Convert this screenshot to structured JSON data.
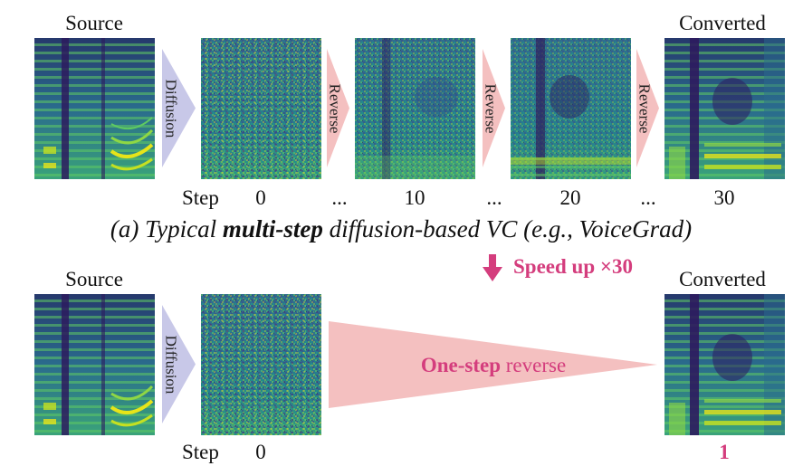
{
  "top_row": {
    "source_label": "Source",
    "converted_label": "Converted",
    "diffusion_label": "Diffusion",
    "reverse_label": "Reverse",
    "step_label": "Step",
    "steps": [
      "0",
      "...",
      "10",
      "...",
      "20",
      "...",
      "30"
    ]
  },
  "caption": {
    "prefix": "(a) Typical ",
    "bold": "multi-step",
    "suffix": " diffusion-based VC (e.g., VoiceGrad)"
  },
  "speedup": {
    "label": "Speed up ×30"
  },
  "bottom_row": {
    "source_label": "Source",
    "converted_label": "Converted",
    "diffusion_label": "Diffusion",
    "step_label": "Step",
    "step_zero": "0",
    "step_one": "1",
    "one_step_bold": "One-step",
    "one_step_rest": " reverse"
  },
  "colors": {
    "diffusion_arrow": "#c8c8e8",
    "reverse_arrow": "#f4c0c0",
    "accent": "#d43d7d",
    "spec_dark": "#2d1b5e",
    "spec_bright": "#e7e419"
  }
}
